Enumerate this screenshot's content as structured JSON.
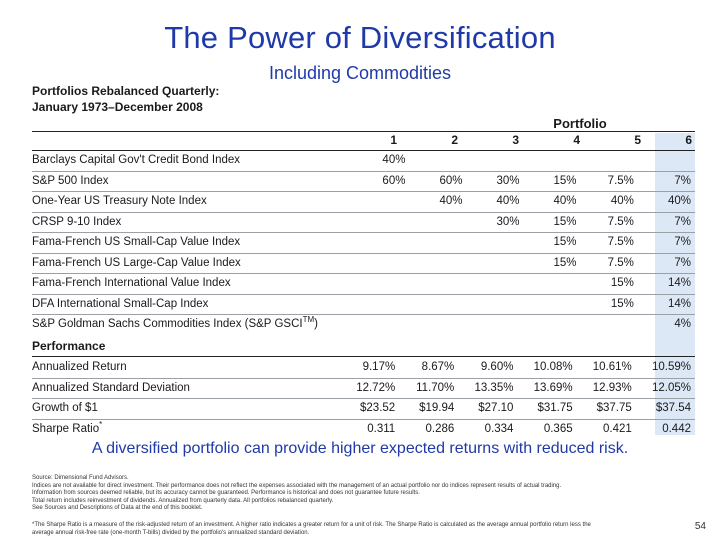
{
  "title": "The Power of Diversification",
  "subtitle": "Including Commodities",
  "heading_line1": "Portfolios Rebalanced Quarterly:",
  "heading_line2": "January 1973–December 2008",
  "portfolio_label": "Portfolio",
  "portfolio_numbers": [
    "1",
    "2",
    "3",
    "4",
    "5",
    "6"
  ],
  "highlight_color": "#dde8f6",
  "title_color": "#1f3aa8",
  "allocations": [
    {
      "label": "Barclays Capital Gov't Credit Bond Index",
      "values": [
        "40%",
        "",
        "",
        "",
        "",
        ""
      ]
    },
    {
      "label": "S&P 500 Index",
      "values": [
        "60%",
        "60%",
        "30%",
        "15%",
        "7.5%",
        "7%"
      ]
    },
    {
      "label": "One-Year US Treasury Note Index",
      "values": [
        "",
        "40%",
        "40%",
        "40%",
        "40%",
        "40%"
      ]
    },
    {
      "label": "CRSP 9-10 Index",
      "values": [
        "",
        "",
        "30%",
        "15%",
        "7.5%",
        "7%"
      ]
    },
    {
      "label": "Fama-French US Small-Cap Value Index",
      "values": [
        "",
        "",
        "",
        "15%",
        "7.5%",
        "7%"
      ]
    },
    {
      "label": "Fama-French US Large-Cap Value Index",
      "values": [
        "",
        "",
        "",
        "15%",
        "7.5%",
        "7%"
      ]
    },
    {
      "label": "Fama-French International Value Index",
      "values": [
        "",
        "",
        "",
        "",
        "15%",
        "14%"
      ]
    },
    {
      "label": "DFA International Small-Cap Index",
      "values": [
        "",
        "",
        "",
        "",
        "15%",
        "14%"
      ]
    },
    {
      "label": "S&P Goldman Sachs Commodities Index (S&P GSCI",
      "label_sup": "TM",
      "label_suffix": ")",
      "values": [
        "",
        "",
        "",
        "",
        "",
        "4%"
      ]
    }
  ],
  "performance_label": "Performance",
  "performance": [
    {
      "label": "Annualized Return",
      "values": [
        "9.17%",
        "8.67%",
        "9.60%",
        "10.08%",
        "10.61%",
        "10.59%"
      ]
    },
    {
      "label": "Annualized Standard Deviation",
      "values": [
        "12.72%",
        "11.70%",
        "13.35%",
        "13.69%",
        "12.93%",
        "12.05%"
      ]
    },
    {
      "label": "Growth of $1",
      "values": [
        "$23.52",
        "$19.94",
        "$27.10",
        "$31.75",
        "$37.75",
        "$37.54"
      ]
    },
    {
      "label": "Sharpe Ratio",
      "label_sup": "*",
      "values": [
        "0.311",
        "0.286",
        "0.334",
        "0.365",
        "0.421",
        "0.442"
      ]
    }
  ],
  "callout": "A diversified portfolio can provide higher expected returns with reduced risk.",
  "footnotes": [
    "Source: Dimensional Fund Advisors.",
    "Indices are not available for direct investment. Their performance does not reflect the expenses associated with the management of an actual portfolio nor do indices represent results of actual trading.",
    "Information from sources deemed reliable, but its accuracy cannot be guaranteed. Performance is historical and does not guarantee future results.",
    "Total return includes reinvestment of dividends. Annualized from quarterly data. All portfolios rebalanced quarterly.",
    "See Sources and Descriptions of Data at the end of this booklet."
  ],
  "footnote_sharpe": [
    "*The Sharpe Ratio is a measure of the risk-adjusted return of an investment. A higher ratio indicates a greater return for a unit of risk. The Sharpe Ratio is calculated as the average annual portfolio return less the",
    "average annual risk-free rate (one-month T-bills) divided by the portfolio's annualized standard deviation."
  ],
  "page_number": "54"
}
